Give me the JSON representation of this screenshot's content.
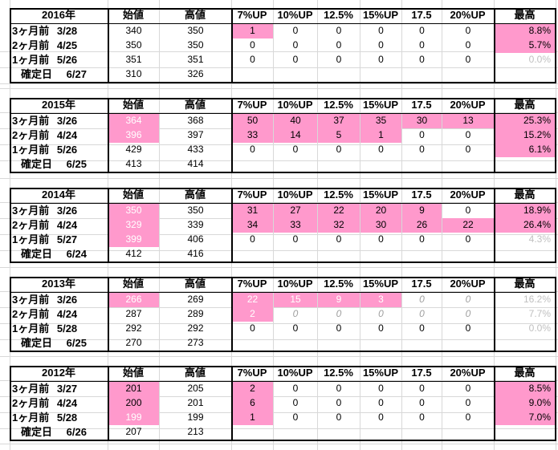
{
  "headers": {
    "start": "始値",
    "high": "高値",
    "c7": "7%UP",
    "c10": "10%UP",
    "c125": "12.5%",
    "c15": "15%UP",
    "c175": "17.5",
    "c20": "20%UP",
    "max": "最高"
  },
  "blocks": [
    {
      "year": "2016年",
      "rows": [
        {
          "label": "3ヶ月前",
          "date": "3/28",
          "start": "340",
          "high": "350",
          "c7": "1",
          "c10": "0",
          "c125": "0",
          "c15": "0",
          "c175": "0",
          "c20": "0",
          "max": "8.8%"
        },
        {
          "label": "2ヶ月前",
          "date": "4/25",
          "start": "350",
          "high": "350",
          "c7": "0",
          "c10": "0",
          "c125": "0",
          "c15": "0",
          "c175": "0",
          "c20": "0",
          "max": "5.7%"
        },
        {
          "label": "1ヶ月前",
          "date": "5/26",
          "start": "351",
          "high": "351",
          "c7": "0",
          "c10": "0",
          "c125": "0",
          "c15": "0",
          "c175": "0",
          "c20": "0",
          "max": "0.0%"
        },
        {
          "label": "確定日",
          "date": "6/27",
          "start": "310",
          "high": "326",
          "c7": "",
          "c10": "",
          "c125": "",
          "c15": "",
          "c175": "",
          "c20": "",
          "max": ""
        }
      ]
    },
    {
      "year": "2015年",
      "rows": [
        {
          "label": "3ヶ月前",
          "date": "3/26",
          "start": "364",
          "high": "368",
          "c7": "50",
          "c10": "40",
          "c125": "37",
          "c15": "35",
          "c175": "30",
          "c20": "13",
          "max": "25.3%"
        },
        {
          "label": "2ヶ月前",
          "date": "4/24",
          "start": "396",
          "high": "397",
          "c7": "33",
          "c10": "14",
          "c125": "5",
          "c15": "1",
          "c175": "0",
          "c20": "0",
          "max": "15.2%"
        },
        {
          "label": "1ヶ月前",
          "date": "5/26",
          "start": "429",
          "high": "433",
          "c7": "0",
          "c10": "0",
          "c125": "0",
          "c15": "0",
          "c175": "0",
          "c20": "0",
          "max": "6.1%"
        },
        {
          "label": "確定日",
          "date": "6/25",
          "start": "413",
          "high": "414",
          "c7": "",
          "c10": "",
          "c125": "",
          "c15": "",
          "c175": "",
          "c20": "",
          "max": ""
        }
      ]
    },
    {
      "year": "2014年",
      "rows": [
        {
          "label": "3ヶ月前",
          "date": "3/26",
          "start": "350",
          "high": "350",
          "c7": "31",
          "c10": "27",
          "c125": "22",
          "c15": "20",
          "c175": "9",
          "c20": "0",
          "max": "18.9%"
        },
        {
          "label": "2ヶ月前",
          "date": "4/24",
          "start": "329",
          "high": "339",
          "c7": "34",
          "c10": "33",
          "c125": "32",
          "c15": "30",
          "c175": "26",
          "c20": "22",
          "max": "26.4%"
        },
        {
          "label": "1ヶ月前",
          "date": "5/27",
          "start": "399",
          "high": "406",
          "c7": "0",
          "c10": "0",
          "c125": "0",
          "c15": "0",
          "c175": "0",
          "c20": "0",
          "max": "4.3%"
        },
        {
          "label": "確定日",
          "date": "6/24",
          "start": "412",
          "high": "416",
          "c7": "",
          "c10": "",
          "c125": "",
          "c15": "",
          "c175": "",
          "c20": "",
          "max": ""
        }
      ]
    },
    {
      "year": "2013年",
      "rows": [
        {
          "label": "3ヶ月前",
          "date": "3/26",
          "start": "266",
          "high": "269",
          "c7": "22",
          "c10": "15",
          "c125": "9",
          "c15": "3",
          "c175": "0",
          "c20": "0",
          "max": "16.2%"
        },
        {
          "label": "2ヶ月前",
          "date": "4/24",
          "start": "287",
          "high": "289",
          "c7": "2",
          "c10": "0",
          "c125": "0",
          "c15": "0",
          "c175": "0",
          "c20": "0",
          "max": "7.7%"
        },
        {
          "label": "1ヶ月前",
          "date": "5/28",
          "start": "292",
          "high": "292",
          "c7": "0",
          "c10": "0",
          "c125": "0",
          "c15": "0",
          "c175": "0",
          "c20": "0",
          "max": "0.0%"
        },
        {
          "label": "確定日",
          "date": "6/25",
          "start": "270",
          "high": "273",
          "c7": "",
          "c10": "",
          "c125": "",
          "c15": "",
          "c175": "",
          "c20": "",
          "max": ""
        }
      ]
    },
    {
      "year": "2012年",
      "rows": [
        {
          "label": "3ヶ月前",
          "date": "3/27",
          "start": "201",
          "high": "205",
          "c7": "2",
          "c10": "0",
          "c125": "0",
          "c15": "0",
          "c175": "0",
          "c20": "0",
          "max": "8.5%"
        },
        {
          "label": "2ヶ月前",
          "date": "4/24",
          "start": "200",
          "high": "201",
          "c7": "6",
          "c10": "0",
          "c125": "0",
          "c15": "0",
          "c175": "0",
          "c20": "0",
          "max": "9.0%"
        },
        {
          "label": "1ヶ月前",
          "date": "5/28",
          "start": "199",
          "high": "199",
          "c7": "1",
          "c10": "0",
          "c125": "0",
          "c15": "0",
          "c175": "0",
          "c20": "0",
          "max": "7.0%"
        },
        {
          "label": "確定日",
          "date": "6/26",
          "start": "207",
          "high": "213",
          "c7": "",
          "c10": "",
          "c125": "",
          "c15": "",
          "c175": "",
          "c20": "",
          "max": ""
        }
      ]
    }
  ],
  "colors": {
    "highlight": "#ff99cc",
    "muted_text": "#c0c0c0",
    "border": "#000000"
  }
}
